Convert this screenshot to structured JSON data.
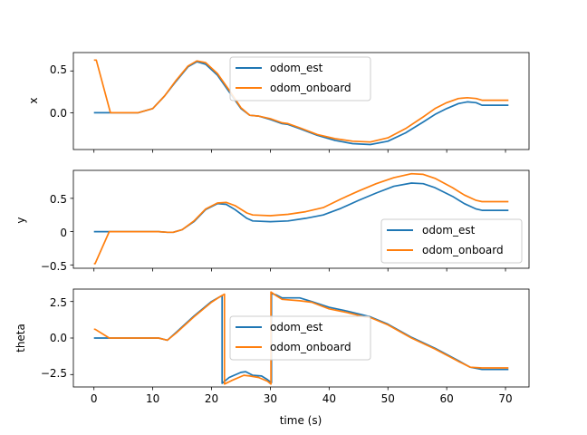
{
  "xlabel": "time (s)",
  "x_ticks": [
    0,
    10,
    20,
    30,
    40,
    50,
    60,
    70
  ],
  "colors": {
    "odom_est": "#1f77b4",
    "odom_onboard": "#ff7f0e"
  },
  "chart_data": [
    {
      "type": "line",
      "ylabel": "x",
      "xlim": [
        -3.5,
        74
      ],
      "ylim": [
        -0.44,
        0.72
      ],
      "y_ticks": [
        0.5,
        0.0
      ],
      "y_tick_labels": [
        "0.5",
        "0.0"
      ],
      "legend": {
        "position": "upper-center",
        "entries": [
          "odom_est",
          "odom_onboard"
        ]
      },
      "series": [
        {
          "name": "odom_est",
          "x": [
            0,
            2.5,
            7.5,
            10,
            12,
            14,
            16,
            17.5,
            19,
            21,
            23,
            25,
            26.5,
            28,
            30,
            32,
            33,
            35,
            38,
            41,
            44,
            47,
            50,
            53,
            56,
            58,
            60,
            62,
            63.5,
            65,
            66,
            70.5
          ],
          "y": [
            0,
            0,
            0,
            0.05,
            0.2,
            0.38,
            0.55,
            0.61,
            0.58,
            0.45,
            0.25,
            0.05,
            -0.03,
            -0.04,
            -0.08,
            -0.13,
            -0.14,
            -0.19,
            -0.27,
            -0.33,
            -0.37,
            -0.38,
            -0.34,
            -0.24,
            -0.11,
            -0.02,
            0.05,
            0.11,
            0.13,
            0.12,
            0.09,
            0.09
          ]
        },
        {
          "name": "odom_onboard",
          "x": [
            0,
            0.4,
            2.8,
            7.5,
            10,
            12,
            14,
            16,
            17.5,
            19,
            21,
            23,
            25,
            26.5,
            28,
            30,
            32,
            33,
            35,
            38,
            41,
            44,
            47,
            50,
            53,
            56,
            58,
            60,
            62,
            63.5,
            65,
            66,
            70.5
          ],
          "y": [
            0.63,
            0.63,
            0,
            0,
            0.05,
            0.2,
            0.39,
            0.56,
            0.62,
            0.6,
            0.47,
            0.27,
            0.06,
            -0.03,
            -0.04,
            -0.07,
            -0.12,
            -0.13,
            -0.18,
            -0.26,
            -0.31,
            -0.34,
            -0.35,
            -0.3,
            -0.19,
            -0.05,
            0.05,
            0.12,
            0.17,
            0.18,
            0.17,
            0.15,
            0.15
          ]
        }
      ]
    },
    {
      "type": "line",
      "ylabel": "y",
      "xlim": [
        -3.5,
        74
      ],
      "ylim": [
        -0.55,
        0.92
      ],
      "y_ticks": [
        0.5,
        0.0,
        -0.5
      ],
      "y_tick_labels": [
        "0.5",
        "0",
        "−0.5"
      ],
      "legend": {
        "position": "lower-right",
        "entries": [
          "odom_est",
          "odom_onboard"
        ]
      },
      "series": [
        {
          "name": "odom_est",
          "x": [
            0,
            2.5,
            11,
            12.5,
            13.5,
            15,
            17,
            19,
            21,
            22.5,
            24,
            26,
            27,
            30,
            33,
            36,
            39,
            42,
            45,
            48,
            51,
            54,
            56,
            58,
            61,
            63,
            65,
            66,
            70.5
          ],
          "y": [
            0,
            0,
            0,
            -0.01,
            -0.01,
            0.03,
            0.15,
            0.33,
            0.42,
            0.41,
            0.33,
            0.2,
            0.16,
            0.15,
            0.16,
            0.2,
            0.25,
            0.35,
            0.47,
            0.58,
            0.68,
            0.73,
            0.72,
            0.66,
            0.53,
            0.42,
            0.34,
            0.32,
            0.32
          ]
        },
        {
          "name": "odom_onboard",
          "x": [
            0,
            0.2,
            2.6,
            11,
            12.5,
            13.5,
            15,
            17,
            19,
            21,
            22.5,
            24,
            26,
            27,
            30,
            33,
            36,
            39,
            42,
            45,
            48,
            51,
            54,
            56,
            58,
            61,
            63,
            65,
            66,
            70.5
          ],
          "y": [
            -0.48,
            -0.48,
            0,
            0,
            -0.01,
            -0.01,
            0.03,
            0.16,
            0.34,
            0.43,
            0.44,
            0.39,
            0.28,
            0.25,
            0.24,
            0.26,
            0.3,
            0.36,
            0.49,
            0.61,
            0.72,
            0.81,
            0.87,
            0.86,
            0.8,
            0.66,
            0.55,
            0.47,
            0.45,
            0.45
          ]
        }
      ]
    },
    {
      "type": "line",
      "ylabel": "theta",
      "xlim": [
        -3.5,
        74
      ],
      "ylim": [
        -3.35,
        3.35
      ],
      "y_ticks": [
        2.5,
        0.0,
        -2.5
      ],
      "y_tick_labels": [
        "2.5",
        "0.0",
        "−2.5"
      ],
      "legend": {
        "position": "center",
        "entries": [
          "odom_est",
          "odom_onboard"
        ]
      },
      "series": [
        {
          "name": "odom_est",
          "x": [
            0,
            2.5,
            11,
            12.5,
            14,
            17,
            20,
            21.3,
            21.8,
            21.8,
            23,
            25,
            25.8,
            27,
            28.5,
            29.5,
            30.2,
            30.2,
            31,
            32,
            35,
            37,
            40,
            43,
            46,
            47,
            50,
            54,
            58,
            62,
            64,
            66,
            70.5
          ],
          "y": [
            0,
            0,
            0,
            -0.15,
            0.4,
            1.5,
            2.5,
            2.8,
            2.9,
            -3.1,
            -2.7,
            -2.35,
            -2.3,
            -2.55,
            -2.6,
            -2.85,
            -3.05,
            3.05,
            2.95,
            2.75,
            2.75,
            2.5,
            2.1,
            1.85,
            1.55,
            1.45,
            0.95,
            0.05,
            -0.7,
            -1.55,
            -2.0,
            -2.15,
            -2.15
          ]
        },
        {
          "name": "odom_onboard",
          "x": [
            0,
            0.2,
            2.6,
            11,
            12.5,
            14,
            17,
            20,
            21.5,
            22.2,
            22.2,
            23.5,
            25.5,
            26.5,
            28,
            29.5,
            30.1,
            30.1,
            31,
            32,
            35,
            37,
            40,
            43,
            46,
            47,
            50,
            54,
            58,
            62,
            64,
            66,
            70.5
          ],
          "y": [
            0.6,
            0.6,
            0,
            0,
            -0.15,
            0.35,
            1.45,
            2.45,
            2.85,
            3.0,
            -3.15,
            -2.9,
            -2.55,
            -2.6,
            -2.7,
            -2.95,
            -3.15,
            3.15,
            2.9,
            2.65,
            2.55,
            2.45,
            2.0,
            1.75,
            1.45,
            1.4,
            0.9,
            0.0,
            -0.75,
            -1.6,
            -2.0,
            -2.05,
            -2.05
          ]
        }
      ]
    }
  ]
}
